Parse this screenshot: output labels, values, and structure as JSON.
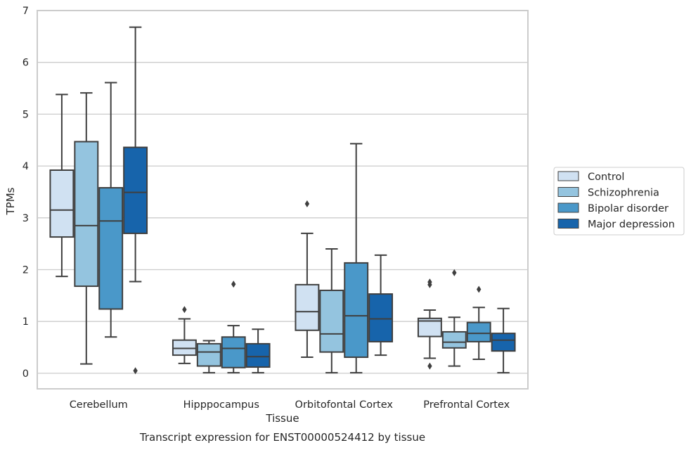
{
  "caption": "Transcript expression for ENST00000524412 by tissue",
  "chart_data": {
    "type": "boxplot",
    "xlabel": "Tissue",
    "ylabel": "TPMs",
    "ylim": [
      -0.3,
      7
    ],
    "yticks": [
      0,
      1,
      2,
      3,
      4,
      5,
      6,
      7
    ],
    "grid": "horizontal",
    "legend_position": "right",
    "categories": [
      "Cerebellum",
      "Hipppocampus",
      "Orbitofontal Cortex",
      "Prefrontal Cortex"
    ],
    "series": [
      {
        "name": "Control",
        "color": "#d0e1f2",
        "boxes": [
          {
            "whislo": 1.87,
            "q1": 2.63,
            "med": 3.15,
            "q3": 3.92,
            "whishi": 5.38,
            "fliers": []
          },
          {
            "whislo": 0.19,
            "q1": 0.35,
            "med": 0.48,
            "q3": 0.64,
            "whishi": 1.05,
            "fliers": [
              1.23
            ]
          },
          {
            "whislo": 0.31,
            "q1": 0.83,
            "med": 1.19,
            "q3": 1.71,
            "whishi": 2.7,
            "fliers": [
              3.27
            ]
          },
          {
            "whislo": 0.29,
            "q1": 0.71,
            "med": 1.01,
            "q3": 1.06,
            "whishi": 1.22,
            "fliers": [
              1.71,
              1.76,
              0.14
            ]
          }
        ]
      },
      {
        "name": "Schizophrenia",
        "color": "#94c4df",
        "boxes": [
          {
            "whislo": 0.18,
            "q1": 1.68,
            "med": 2.85,
            "q3": 4.47,
            "whishi": 5.41,
            "fliers": []
          },
          {
            "whislo": 0.01,
            "q1": 0.14,
            "med": 0.41,
            "q3": 0.57,
            "whishi": 0.63,
            "fliers": []
          },
          {
            "whislo": 0.01,
            "q1": 0.41,
            "med": 0.76,
            "q3": 1.6,
            "whishi": 2.4,
            "fliers": []
          },
          {
            "whislo": 0.14,
            "q1": 0.49,
            "med": 0.6,
            "q3": 0.8,
            "whishi": 1.08,
            "fliers": [
              1.94
            ]
          }
        ]
      },
      {
        "name": "Bipolar disorder",
        "color": "#4a98c9",
        "boxes": [
          {
            "whislo": 0.7,
            "q1": 1.24,
            "med": 2.94,
            "q3": 3.58,
            "whishi": 5.61,
            "fliers": []
          },
          {
            "whislo": 0.01,
            "q1": 0.11,
            "med": 0.48,
            "q3": 0.7,
            "whishi": 0.92,
            "fliers": [
              1.72
            ]
          },
          {
            "whislo": 0.01,
            "q1": 0.31,
            "med": 1.11,
            "q3": 2.13,
            "whishi": 4.43,
            "fliers": []
          },
          {
            "whislo": 0.27,
            "q1": 0.61,
            "med": 0.77,
            "q3": 0.98,
            "whishi": 1.27,
            "fliers": [
              1.62
            ]
          }
        ]
      },
      {
        "name": "Major depression",
        "color": "#1764ab",
        "boxes": [
          {
            "whislo": 1.77,
            "q1": 2.7,
            "med": 3.49,
            "q3": 4.36,
            "whishi": 6.68,
            "fliers": [
              0.05
            ]
          },
          {
            "whislo": 0.01,
            "q1": 0.12,
            "med": 0.32,
            "q3": 0.57,
            "whishi": 0.85,
            "fliers": []
          },
          {
            "whislo": 0.35,
            "q1": 0.61,
            "med": 1.05,
            "q3": 1.53,
            "whishi": 2.28,
            "fliers": []
          },
          {
            "whislo": 0.01,
            "q1": 0.43,
            "med": 0.64,
            "q3": 0.77,
            "whishi": 1.25,
            "fliers": []
          }
        ]
      }
    ]
  }
}
